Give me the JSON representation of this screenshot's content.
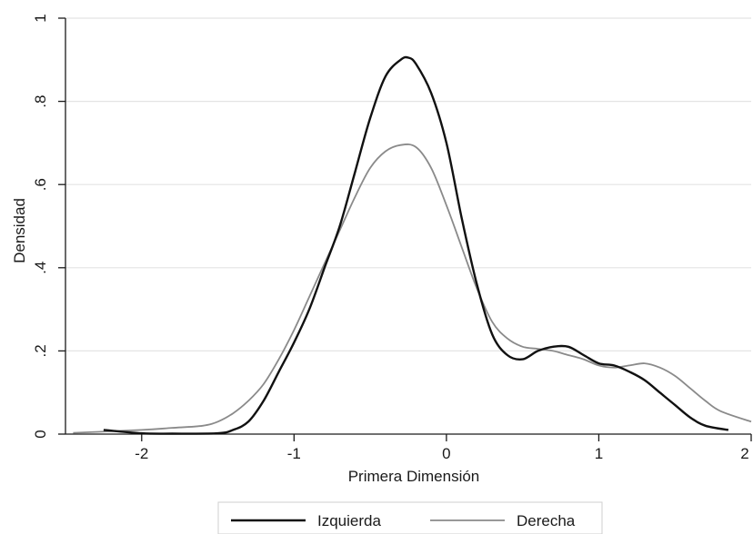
{
  "chart_data": {
    "type": "line",
    "title": "",
    "xlabel": "Primera Dimensión",
    "ylabel": "Densidad",
    "xlim": [
      -2.5,
      2.0
    ],
    "ylim": [
      0,
      1
    ],
    "xticks": [
      -2,
      -1,
      0,
      1,
      2
    ],
    "xtick_labels": [
      "-2",
      "-1",
      "0",
      "1",
      "2"
    ],
    "yticks": [
      0,
      0.2,
      0.4,
      0.6,
      0.8,
      1
    ],
    "ytick_labels": [
      "0",
      ".2",
      ".4",
      ".6",
      ".8",
      "1"
    ],
    "grid": "horizontal",
    "legend_position": "bottom",
    "series": [
      {
        "name": "Izquierda",
        "color": "#111111",
        "x": [
          -2.25,
          -2.0,
          -1.8,
          -1.5,
          -1.4,
          -1.3,
          -1.2,
          -1.1,
          -1.0,
          -0.9,
          -0.8,
          -0.7,
          -0.6,
          -0.5,
          -0.4,
          -0.3,
          -0.25,
          -0.2,
          -0.1,
          0.0,
          0.1,
          0.2,
          0.3,
          0.4,
          0.5,
          0.6,
          0.7,
          0.8,
          0.9,
          1.0,
          1.1,
          1.2,
          1.3,
          1.4,
          1.5,
          1.6,
          1.7,
          1.85
        ],
        "values": [
          0.01,
          0.002,
          0.001,
          0.002,
          0.01,
          0.03,
          0.08,
          0.15,
          0.22,
          0.3,
          0.4,
          0.5,
          0.63,
          0.76,
          0.86,
          0.9,
          0.905,
          0.89,
          0.82,
          0.7,
          0.52,
          0.36,
          0.24,
          0.19,
          0.18,
          0.2,
          0.21,
          0.21,
          0.19,
          0.17,
          0.165,
          0.15,
          0.13,
          0.1,
          0.07,
          0.04,
          0.02,
          0.01
        ]
      },
      {
        "name": "Derecha",
        "color": "#8a8a8a",
        "x": [
          -2.45,
          -2.0,
          -1.8,
          -1.6,
          -1.5,
          -1.4,
          -1.3,
          -1.2,
          -1.1,
          -1.0,
          -0.9,
          -0.8,
          -0.7,
          -0.6,
          -0.5,
          -0.4,
          -0.3,
          -0.2,
          -0.1,
          0.0,
          0.1,
          0.2,
          0.3,
          0.4,
          0.5,
          0.6,
          0.7,
          0.8,
          0.9,
          1.0,
          1.1,
          1.2,
          1.3,
          1.4,
          1.5,
          1.6,
          1.7,
          1.8,
          2.0
        ],
        "values": [
          0.003,
          0.01,
          0.015,
          0.02,
          0.03,
          0.05,
          0.08,
          0.12,
          0.18,
          0.25,
          0.33,
          0.41,
          0.49,
          0.57,
          0.64,
          0.68,
          0.695,
          0.69,
          0.64,
          0.55,
          0.45,
          0.35,
          0.27,
          0.23,
          0.21,
          0.205,
          0.2,
          0.19,
          0.18,
          0.165,
          0.16,
          0.165,
          0.17,
          0.16,
          0.14,
          0.11,
          0.08,
          0.055,
          0.03
        ]
      }
    ]
  }
}
